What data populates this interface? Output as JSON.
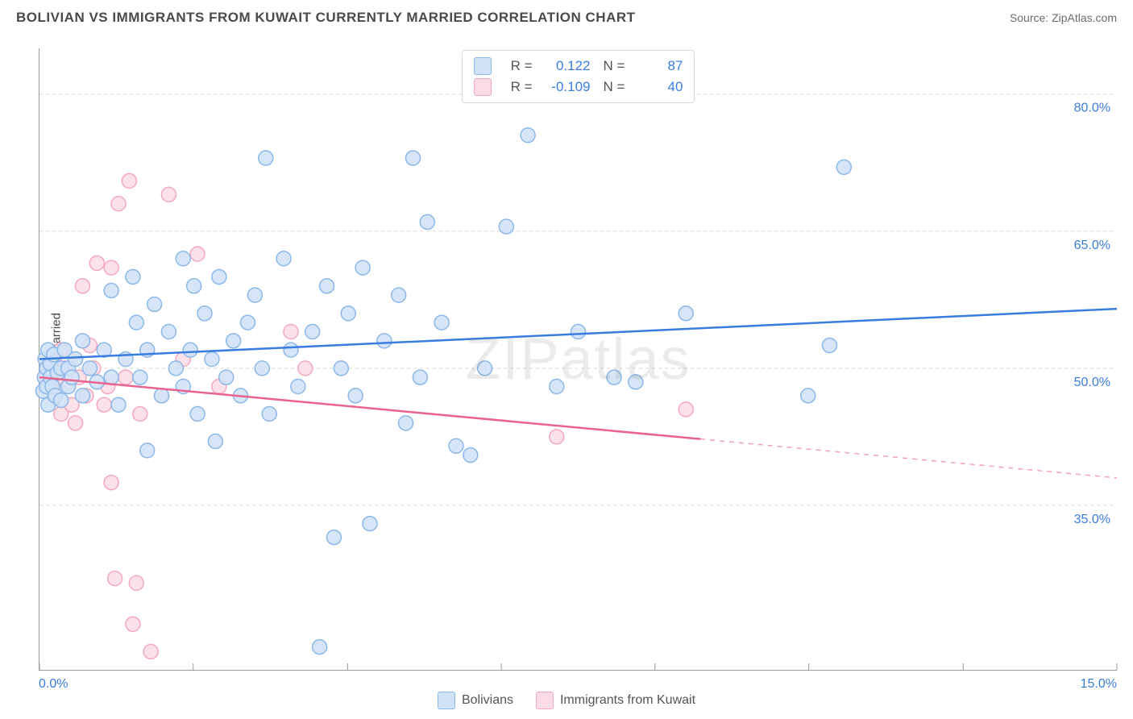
{
  "title": "BOLIVIAN VS IMMIGRANTS FROM KUWAIT CURRENTLY MARRIED CORRELATION CHART",
  "source": "Source: ZipAtlas.com",
  "watermark": "ZIPatlas",
  "ylabel": "Currently Married",
  "chart": {
    "type": "scatter",
    "xlim": [
      0,
      15
    ],
    "ylim": [
      17,
      85
    ],
    "x_ticks": [
      0,
      15
    ],
    "x_tick_labels": [
      "0.0%",
      "15.0%"
    ],
    "x_minor_ticks": [
      0,
      2.14,
      4.29,
      6.43,
      8.57,
      10.71,
      12.86,
      15
    ],
    "y_ticks": [
      35,
      50,
      65,
      80
    ],
    "y_tick_labels": [
      "35.0%",
      "50.0%",
      "65.0%",
      "80.0%"
    ],
    "grid_color": "#d9d9d9",
    "grid_dash": "4,4",
    "background_color": "#ffffff",
    "point_radius": 9,
    "series": [
      {
        "name": "Bolivians",
        "fill": "#cfe2f7",
        "stroke": "#8cb8e8",
        "line_color": "#3a7de0",
        "R": "0.122",
        "N": "87",
        "trend": {
          "x1": 0,
          "y1": 51.0,
          "x2": 15,
          "y2": 56.5,
          "extrapolated_from_x": null
        },
        "points": [
          [
            0.05,
            47.5
          ],
          [
            0.07,
            49.0
          ],
          [
            0.08,
            51.0
          ],
          [
            0.1,
            50.0
          ],
          [
            0.1,
            48.0
          ],
          [
            0.12,
            52.0
          ],
          [
            0.12,
            46.0
          ],
          [
            0.15,
            50.5
          ],
          [
            0.15,
            49.0
          ],
          [
            0.18,
            48.0
          ],
          [
            0.2,
            51.5
          ],
          [
            0.22,
            47.0
          ],
          [
            0.25,
            49.5
          ],
          [
            0.3,
            50.0
          ],
          [
            0.3,
            46.5
          ],
          [
            0.35,
            52.0
          ],
          [
            0.4,
            48.0
          ],
          [
            0.4,
            50.0
          ],
          [
            0.45,
            49.0
          ],
          [
            0.5,
            51.0
          ],
          [
            0.6,
            47.0
          ],
          [
            0.6,
            53.0
          ],
          [
            0.7,
            50.0
          ],
          [
            0.8,
            48.5
          ],
          [
            0.9,
            52.0
          ],
          [
            1.0,
            49.0
          ],
          [
            1.0,
            58.5
          ],
          [
            1.1,
            46.0
          ],
          [
            1.2,
            51.0
          ],
          [
            1.3,
            60.0
          ],
          [
            1.35,
            55.0
          ],
          [
            1.4,
            49.0
          ],
          [
            1.5,
            52.0
          ],
          [
            1.5,
            41.0
          ],
          [
            1.6,
            57.0
          ],
          [
            1.7,
            47.0
          ],
          [
            1.8,
            54.0
          ],
          [
            1.9,
            50.0
          ],
          [
            2.0,
            62.0
          ],
          [
            2.0,
            48.0
          ],
          [
            2.1,
            52.0
          ],
          [
            2.15,
            59.0
          ],
          [
            2.2,
            45.0
          ],
          [
            2.3,
            56.0
          ],
          [
            2.4,
            51.0
          ],
          [
            2.45,
            42.0
          ],
          [
            2.5,
            60.0
          ],
          [
            2.6,
            49.0
          ],
          [
            2.7,
            53.0
          ],
          [
            2.8,
            47.0
          ],
          [
            2.9,
            55.0
          ],
          [
            3.0,
            58.0
          ],
          [
            3.1,
            50.0
          ],
          [
            3.15,
            73.0
          ],
          [
            3.2,
            45.0
          ],
          [
            3.4,
            62.0
          ],
          [
            3.5,
            52.0
          ],
          [
            3.6,
            48.0
          ],
          [
            3.8,
            54.0
          ],
          [
            3.9,
            19.5
          ],
          [
            4.0,
            59.0
          ],
          [
            4.1,
            31.5
          ],
          [
            4.2,
            50.0
          ],
          [
            4.3,
            56.0
          ],
          [
            4.4,
            47.0
          ],
          [
            4.5,
            61.0
          ],
          [
            4.6,
            33.0
          ],
          [
            4.8,
            53.0
          ],
          [
            5.0,
            58.0
          ],
          [
            5.1,
            44.0
          ],
          [
            5.2,
            73.0
          ],
          [
            5.3,
            49.0
          ],
          [
            5.4,
            66.0
          ],
          [
            5.6,
            55.0
          ],
          [
            5.8,
            41.5
          ],
          [
            6.0,
            40.5
          ],
          [
            6.2,
            50.0
          ],
          [
            6.5,
            65.5
          ],
          [
            6.8,
            75.5
          ],
          [
            7.2,
            48.0
          ],
          [
            7.5,
            54.0
          ],
          [
            8.0,
            49.0
          ],
          [
            8.3,
            48.5
          ],
          [
            9.0,
            56.0
          ],
          [
            10.7,
            47.0
          ],
          [
            11.0,
            52.5
          ],
          [
            11.2,
            72.0
          ]
        ]
      },
      {
        "name": "Immigrants from Kuwait",
        "fill": "#fbdce5",
        "stroke": "#f4a8c0",
        "line_color": "#e9638f",
        "R": "-0.109",
        "N": "40",
        "trend": {
          "x1": 0,
          "y1": 49.0,
          "x2": 15,
          "y2": 38.0,
          "extrapolated_from_x": 9.2
        },
        "points": [
          [
            0.1,
            50.0
          ],
          [
            0.15,
            48.5
          ],
          [
            0.2,
            51.0
          ],
          [
            0.2,
            47.0
          ],
          [
            0.25,
            49.0
          ],
          [
            0.3,
            52.0
          ],
          [
            0.3,
            45.0
          ],
          [
            0.35,
            50.0
          ],
          [
            0.4,
            48.0
          ],
          [
            0.45,
            46.0
          ],
          [
            0.5,
            51.0
          ],
          [
            0.5,
            44.0
          ],
          [
            0.55,
            49.0
          ],
          [
            0.6,
            59.0
          ],
          [
            0.65,
            47.0
          ],
          [
            0.7,
            52.5
          ],
          [
            0.75,
            50.0
          ],
          [
            0.8,
            61.5
          ],
          [
            0.9,
            46.0
          ],
          [
            0.95,
            48.0
          ],
          [
            1.0,
            61.0
          ],
          [
            1.0,
            37.5
          ],
          [
            1.05,
            27.0
          ],
          [
            1.1,
            68.0
          ],
          [
            1.2,
            49.0
          ],
          [
            1.25,
            70.5
          ],
          [
            1.3,
            22.0
          ],
          [
            1.35,
            26.5
          ],
          [
            1.4,
            45.0
          ],
          [
            1.5,
            52.0
          ],
          [
            1.55,
            19.0
          ],
          [
            1.7,
            47.0
          ],
          [
            1.8,
            69.0
          ],
          [
            2.0,
            51.0
          ],
          [
            2.2,
            62.5
          ],
          [
            2.5,
            48.0
          ],
          [
            3.5,
            54.0
          ],
          [
            3.7,
            50.0
          ],
          [
            7.2,
            42.5
          ],
          [
            9.0,
            45.5
          ]
        ]
      }
    ],
    "bottom_legend": [
      {
        "swatch_fill": "#cfe2f7",
        "swatch_stroke": "#8cb8e8",
        "label": "Bolivians"
      },
      {
        "swatch_fill": "#fbdce5",
        "swatch_stroke": "#f4a8c0",
        "label": "Immigrants from Kuwait"
      }
    ]
  }
}
